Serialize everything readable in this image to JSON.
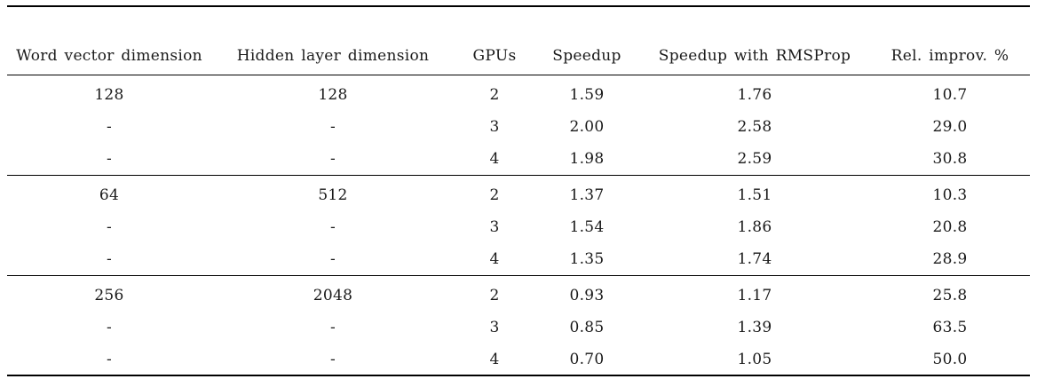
{
  "table": {
    "columns": [
      "Word vector dimension",
      "Hidden layer dimension",
      "GPUs",
      "Speedup",
      "Speedup with RMSProp",
      "Rel. improv. %"
    ],
    "groups": [
      {
        "rows": [
          [
            "128",
            "128",
            "2",
            "1.59",
            "1.76",
            "10.7"
          ],
          [
            "-",
            "-",
            "3",
            "2.00",
            "2.58",
            "29.0"
          ],
          [
            "-",
            "-",
            "4",
            "1.98",
            "2.59",
            "30.8"
          ]
        ]
      },
      {
        "rows": [
          [
            "64",
            "512",
            "2",
            "1.37",
            "1.51",
            "10.3"
          ],
          [
            "-",
            "-",
            "3",
            "1.54",
            "1.86",
            "20.8"
          ],
          [
            "-",
            "-",
            "4",
            "1.35",
            "1.74",
            "28.9"
          ]
        ]
      },
      {
        "rows": [
          [
            "256",
            "2048",
            "2",
            "0.93",
            "1.17",
            "25.8"
          ],
          [
            "-",
            "-",
            "3",
            "0.85",
            "1.39",
            "63.5"
          ],
          [
            "-",
            "-",
            "4",
            "0.70",
            "1.05",
            "50.0"
          ]
        ]
      }
    ]
  },
  "colors": {
    "text": "#1a1a1a",
    "rule": "#000000",
    "background": "#ffffff"
  }
}
